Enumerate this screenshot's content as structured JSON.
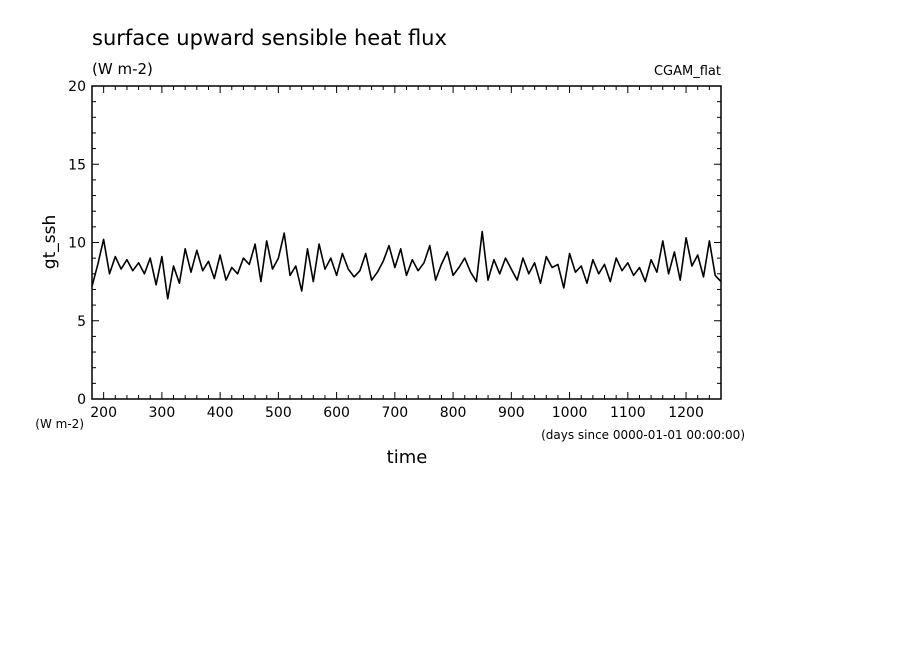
{
  "chart_data": {
    "type": "line",
    "title": "surface upward sensible heat flux",
    "subtitle": "(W m-2)",
    "source_label": "CGAM_flat",
    "xlabel": "time",
    "x_units": "(days since 0000-01-01 00:00:00)",
    "ylabel": "gt_ssh",
    "y_units": "(W m-2)",
    "xlim": [
      180,
      1260
    ],
    "ylim": [
      0,
      20
    ],
    "x_ticks": [
      200,
      300,
      400,
      500,
      600,
      700,
      800,
      900,
      1000,
      1100,
      1200
    ],
    "x_tick_labels": [
      "200",
      "300",
      "400",
      "500",
      "600",
      "700",
      "800",
      "900",
      "1000",
      "1100",
      "1200"
    ],
    "y_ticks": [
      0,
      5,
      10,
      15,
      20
    ],
    "y_tick_labels": [
      "0",
      "5",
      "10",
      "15",
      "20"
    ],
    "grid": false,
    "line_color": "#000000",
    "series": [
      {
        "x": [
          180,
          190,
          200,
          210,
          220,
          230,
          240,
          250,
          260,
          270,
          280,
          290,
          300,
          310,
          320,
          330,
          340,
          350,
          360,
          370,
          380,
          390,
          400,
          410,
          420,
          430,
          440,
          450,
          460,
          470,
          480,
          490,
          500,
          510,
          520,
          530,
          540,
          550,
          560,
          570,
          580,
          590,
          600,
          610,
          620,
          630,
          640,
          650,
          660,
          670,
          680,
          690,
          700,
          710,
          720,
          730,
          740,
          750,
          760,
          770,
          780,
          790,
          800,
          810,
          820,
          830,
          840,
          850,
          860,
          870,
          880,
          890,
          900,
          910,
          920,
          930,
          940,
          950,
          960,
          970,
          980,
          990,
          1000,
          1010,
          1020,
          1030,
          1040,
          1050,
          1060,
          1070,
          1080,
          1090,
          1100,
          1110,
          1120,
          1130,
          1140,
          1150,
          1160,
          1170,
          1180,
          1190,
          1200,
          1210,
          1220,
          1230,
          1240,
          1250,
          1260
        ],
        "values": [
          7.2,
          8.6,
          10.2,
          8.0,
          9.1,
          8.3,
          8.9,
          8.2,
          8.7,
          8.0,
          9.0,
          7.3,
          9.1,
          6.4,
          8.5,
          7.4,
          9.6,
          8.1,
          9.5,
          8.2,
          8.8,
          7.7,
          9.2,
          7.6,
          8.4,
          8.0,
          9.0,
          8.6,
          9.9,
          7.5,
          10.1,
          8.3,
          9.0,
          10.6,
          7.9,
          8.5,
          6.9,
          9.6,
          7.5,
          9.9,
          8.3,
          9.0,
          7.9,
          9.3,
          8.3,
          7.8,
          8.2,
          9.3,
          7.6,
          8.1,
          8.8,
          9.8,
          8.4,
          9.6,
          7.9,
          8.9,
          8.2,
          8.7,
          9.8,
          7.6,
          8.6,
          9.4,
          7.9,
          8.4,
          9.0,
          8.1,
          7.5,
          10.7,
          7.6,
          8.9,
          8.0,
          9.0,
          8.3,
          7.6,
          9.0,
          8.0,
          8.7,
          7.4,
          9.1,
          8.4,
          8.6,
          7.1,
          9.3,
          8.1,
          8.5,
          7.4,
          8.9,
          8.0,
          8.6,
          7.5,
          9.0,
          8.2,
          8.7,
          7.9,
          8.4,
          7.5,
          8.9,
          8.1,
          10.1,
          8.0,
          9.4,
          7.6,
          10.3,
          8.5,
          9.2,
          7.8,
          10.1,
          7.9,
          7.5
        ]
      }
    ]
  }
}
